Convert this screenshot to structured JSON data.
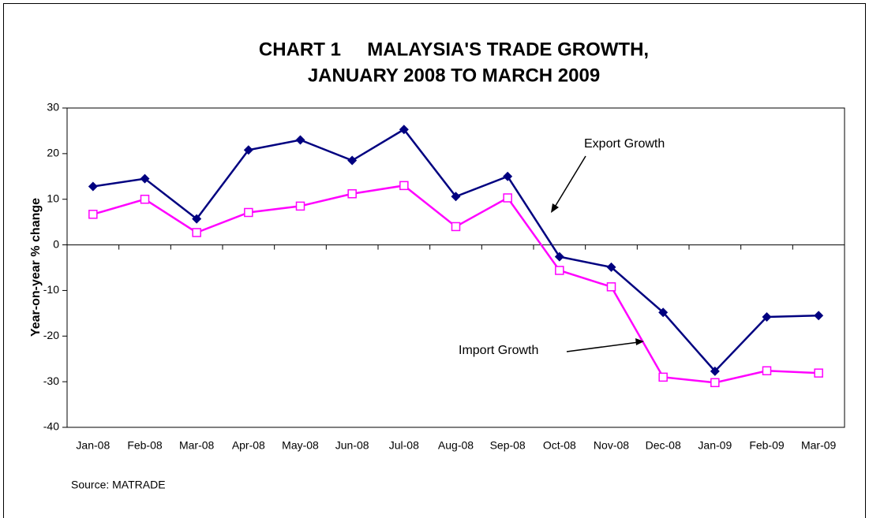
{
  "chart_data": {
    "type": "line",
    "title": [
      "CHART 1     MALAYSIA'S TRADE GROWTH,",
      "JANUARY 2008 TO MARCH 2009"
    ],
    "y_label": "Year-on-year % change",
    "categories": [
      "Jan-08",
      "Feb-08",
      "Mar-08",
      "Apr-08",
      "May-08",
      "Jun-08",
      "Jul-08",
      "Aug-08",
      "Sep-08",
      "Oct-08",
      "Nov-08",
      "Dec-08",
      "Jan-09",
      "Feb-09",
      "Mar-09"
    ],
    "series": [
      {
        "name": "Export Growth",
        "color": "#000080",
        "marker": "diamond",
        "values": [
          12.8,
          14.5,
          5.7,
          20.8,
          23,
          18.5,
          25.3,
          10.6,
          15,
          -2.6,
          -4.9,
          -14.8,
          -27.7,
          -15.8,
          -15.5
        ]
      },
      {
        "name": "Import Growth",
        "color": "#ff00ff",
        "marker": "square",
        "values": [
          6.7,
          10,
          2.7,
          7.1,
          8.5,
          11.2,
          13,
          4,
          10.3,
          -5.6,
          -9.2,
          -29,
          -30.2,
          -27.6,
          -28.1
        ]
      }
    ],
    "ylim": [
      -40,
      30
    ],
    "yticks": [
      -40,
      -30,
      -20,
      -10,
      0,
      10,
      20,
      30
    ],
    "source": "Source: MATRADE"
  }
}
